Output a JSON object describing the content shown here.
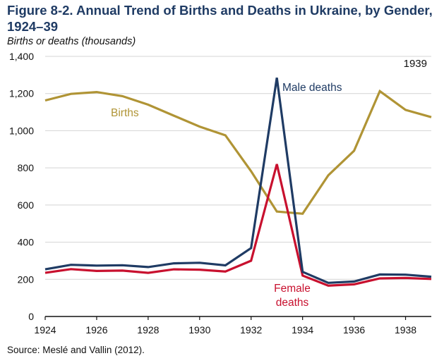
{
  "figure": {
    "title": "Figure 8-2. Annual Trend of Births and Deaths in Ukraine, by Gender, 1924–39",
    "subtitle": "Births or deaths (thousands)",
    "source": "Source: Meslé and Vallin (2012)."
  },
  "chart_data": {
    "type": "line",
    "title": "Annual Trend of Births and Deaths in Ukraine, by Gender, 1924–39",
    "ylabel": "Births or deaths (thousands)",
    "xlabel": "",
    "x": [
      1924,
      1925,
      1926,
      1927,
      1928,
      1929,
      1930,
      1931,
      1932,
      1933,
      1934,
      1935,
      1936,
      1937,
      1938,
      1939
    ],
    "xlim": [
      1924,
      1939
    ],
    "ylim": [
      0,
      1400
    ],
    "xticks": [
      1924,
      1926,
      1928,
      1930,
      1932,
      1934,
      1936,
      1938
    ],
    "yticks": [
      0,
      200,
      400,
      600,
      800,
      1000,
      1200,
      1400
    ],
    "xtick_labels": [
      "1924",
      "1926",
      "1928",
      "1930",
      "1932",
      "1934",
      "1936",
      "1938"
    ],
    "ytick_labels": [
      "0",
      "200",
      "400",
      "600",
      "800",
      "1,000",
      "1,200",
      "1,400"
    ],
    "grid": "horizontal",
    "series": [
      {
        "name": "Births",
        "label": "Births",
        "color": "#b09435",
        "values": [
          1163,
          1198,
          1208,
          1186,
          1140,
          1081,
          1022,
          975,
          782,
          565,
          553,
          760,
          892,
          1213,
          1112,
          1073
        ]
      },
      {
        "name": "Male deaths",
        "label": "Male deaths",
        "color": "#1f3b64",
        "values": [
          254,
          278,
          274,
          276,
          266,
          286,
          289,
          275,
          368,
          1285,
          240,
          181,
          188,
          226,
          225,
          214
        ]
      },
      {
        "name": "Female deaths",
        "label_lines": [
          "Female",
          "deaths"
        ],
        "color": "#c8102e",
        "values": [
          235,
          255,
          245,
          247,
          235,
          254,
          252,
          242,
          300,
          820,
          220,
          166,
          173,
          205,
          207,
          202
        ]
      }
    ],
    "annotations": [
      {
        "text": "1939"
      }
    ]
  }
}
